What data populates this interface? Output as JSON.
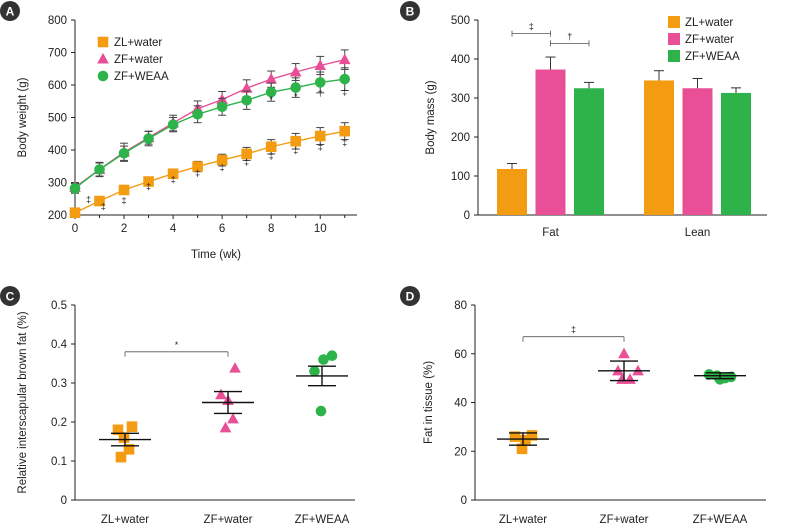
{
  "colors": {
    "zl": "#F39C12",
    "zf": "#E84F96",
    "zfw": "#2DB34A",
    "axis": "#222222",
    "panel_badge": "#333333"
  },
  "chart_data": [
    {
      "panel": "A",
      "type": "line",
      "xlabel": "Time (wk)",
      "ylabel": "Body weight (g)",
      "xlim": [
        0,
        11.5
      ],
      "ylim": [
        200,
        800
      ],
      "xticks": [
        "0",
        "2",
        "4",
        "6",
        "8",
        "10"
      ],
      "yticks": [
        "200",
        "300",
        "400",
        "500",
        "600",
        "700",
        "800"
      ],
      "x": [
        0,
        1,
        2,
        3,
        4,
        5,
        6,
        7,
        8,
        9,
        10,
        11
      ],
      "series": [
        {
          "name": "ZL+water",
          "color": "#F39C12",
          "marker": "square",
          "values": [
            207,
            243,
            277,
            303,
            327,
            349,
            369,
            388,
            410,
            427,
            443,
            458
          ],
          "err": [
            8,
            10,
            12,
            12,
            14,
            16,
            18,
            20,
            22,
            24,
            26,
            26
          ]
        },
        {
          "name": "ZF+water",
          "color": "#E84F96",
          "marker": "triangle",
          "values": [
            285,
            340,
            393,
            438,
            483,
            527,
            555,
            590,
            618,
            640,
            660,
            678
          ],
          "err": [
            15,
            22,
            28,
            20,
            24,
            24,
            25,
            26,
            25,
            26,
            28,
            30
          ]
        },
        {
          "name": "ZF+WEAA",
          "color": "#2DB34A",
          "marker": "circle",
          "values": [
            282,
            340,
            390,
            435,
            478,
            510,
            533,
            553,
            578,
            592,
            608,
            618
          ],
          "err": [
            15,
            20,
            22,
            22,
            22,
            26,
            26,
            28,
            28,
            30,
            32,
            35
          ]
        }
      ],
      "annotations": [
        {
          "x": 0.55,
          "y": 248,
          "text": "‡"
        },
        {
          "x": 1.15,
          "y": 226,
          "text": "‡"
        },
        {
          "x": 2,
          "y": 244,
          "text": "‡"
        },
        {
          "x": 3,
          "y": 287,
          "text": "‡"
        },
        {
          "x": 4,
          "y": 309,
          "text": "‡"
        },
        {
          "x": 5,
          "y": 329,
          "text": "‡"
        },
        {
          "x": 6,
          "y": 346,
          "text": "‡"
        },
        {
          "x": 7,
          "y": 363,
          "text": "‡"
        },
        {
          "x": 8,
          "y": 382,
          "text": "‡"
        },
        {
          "x": 9,
          "y": 398,
          "text": "‡"
        },
        {
          "x": 10,
          "y": 410,
          "text": "‡"
        },
        {
          "x": 11,
          "y": 423,
          "text": "‡"
        },
        {
          "x": 8,
          "y": 555,
          "text": "*"
        },
        {
          "x": 9,
          "y": 565,
          "text": "*"
        },
        {
          "x": 10,
          "y": 575,
          "text": "†"
        },
        {
          "x": 11,
          "y": 578,
          "text": "‡"
        }
      ]
    },
    {
      "panel": "B",
      "type": "bar",
      "ylabel": "Body mass (g)",
      "ylim": [
        0,
        500
      ],
      "yticks": [
        "0",
        "100",
        "200",
        "300",
        "400",
        "500"
      ],
      "categories": [
        "Fat",
        "Lean"
      ],
      "series": [
        {
          "name": "ZL+water",
          "color": "#F39C12",
          "values": [
            118,
            345
          ],
          "err": [
            14,
            25
          ]
        },
        {
          "name": "ZF+water",
          "color": "#E84F96",
          "values": [
            373,
            325
          ],
          "err": [
            32,
            25
          ]
        },
        {
          "name": "ZF+WEAA",
          "color": "#2DB34A",
          "values": [
            325,
            313
          ],
          "err": [
            15,
            13
          ]
        }
      ],
      "comparisons": [
        {
          "a": 0,
          "b": 1,
          "y": 465,
          "text": "‡"
        },
        {
          "a": 1,
          "b": 2,
          "y": 440,
          "text": "†"
        }
      ]
    },
    {
      "panel": "C",
      "type": "scatter",
      "ylabel": "Relative interscapular brown fat (%)",
      "ylim": [
        0,
        0.5
      ],
      "yticks": [
        "0",
        "0.1",
        "0.2",
        "0.3",
        "0.4",
        "0.5"
      ],
      "categories": [
        "ZL+water",
        "ZF+water",
        "ZF+WEAA"
      ],
      "groups": [
        {
          "name": "ZL+water",
          "color": "#F39C12",
          "marker": "square",
          "mean": 0.155,
          "sem": 0.016,
          "points": [
            [
              -0.14,
              0.18
            ],
            [
              0.14,
              0.188
            ],
            [
              -0.02,
              0.16
            ],
            [
              0.08,
              0.13
            ],
            [
              -0.08,
              0.11
            ]
          ]
        },
        {
          "name": "ZF+water",
          "color": "#E84F96",
          "marker": "triangle",
          "mean": 0.25,
          "sem": 0.028,
          "points": [
            [
              -0.14,
              0.27
            ],
            [
              0.14,
              0.338
            ],
            [
              0,
              0.255
            ],
            [
              0.1,
              0.208
            ],
            [
              -0.05,
              0.185
            ]
          ]
        },
        {
          "name": "ZF+WEAA",
          "color": "#2DB34A",
          "marker": "circle",
          "mean": 0.318,
          "sem": 0.025,
          "points": [
            [
              -0.15,
              0.33
            ],
            [
              0.03,
              0.36
            ],
            [
              0.2,
              0.37
            ],
            [
              -0.02,
              0.228
            ]
          ]
        }
      ],
      "comparisons": [
        {
          "a": 0,
          "b": 1,
          "y": 0.38,
          "text": "*"
        }
      ]
    },
    {
      "panel": "D",
      "type": "scatter",
      "ylabel": "Fat in tissue (%)",
      "ylim": [
        0,
        80
      ],
      "yticks": [
        "0",
        "20",
        "40",
        "60",
        "80"
      ],
      "categories": [
        "ZL+water",
        "ZF+water",
        "ZF+WEAA"
      ],
      "groups": [
        {
          "name": "ZL+water",
          "color": "#F39C12",
          "marker": "square",
          "mean": 25,
          "sem": 2.5,
          "points": [
            [
              -0.16,
              26
            ],
            [
              0.18,
              26.5
            ],
            [
              0.05,
              24.5
            ],
            [
              -0.02,
              21
            ]
          ]
        },
        {
          "name": "ZF+water",
          "color": "#E84F96",
          "marker": "triangle",
          "mean": 53,
          "sem": 4,
          "points": [
            [
              -0.12,
              53
            ],
            [
              0,
              60
            ],
            [
              0.28,
              53
            ],
            [
              -0.04,
              49.5
            ],
            [
              0.12,
              49.5
            ]
          ]
        },
        {
          "name": "ZF+WEAA",
          "color": "#2DB34A",
          "marker": "circle",
          "mean": 51,
          "sem": 1.2,
          "points": [
            [
              -0.22,
              51.5
            ],
            [
              -0.06,
              51
            ],
            [
              0.1,
              50
            ],
            [
              0.22,
              50.5
            ],
            [
              0,
              49.5
            ]
          ]
        }
      ],
      "comparisons": [
        {
          "a": 0,
          "b": 1,
          "y": 67,
          "text": "‡"
        }
      ]
    }
  ],
  "legend_items": [
    "ZL+water",
    "ZF+water",
    "ZF+WEAA"
  ],
  "panel_labels": [
    "A",
    "B",
    "C",
    "D"
  ]
}
